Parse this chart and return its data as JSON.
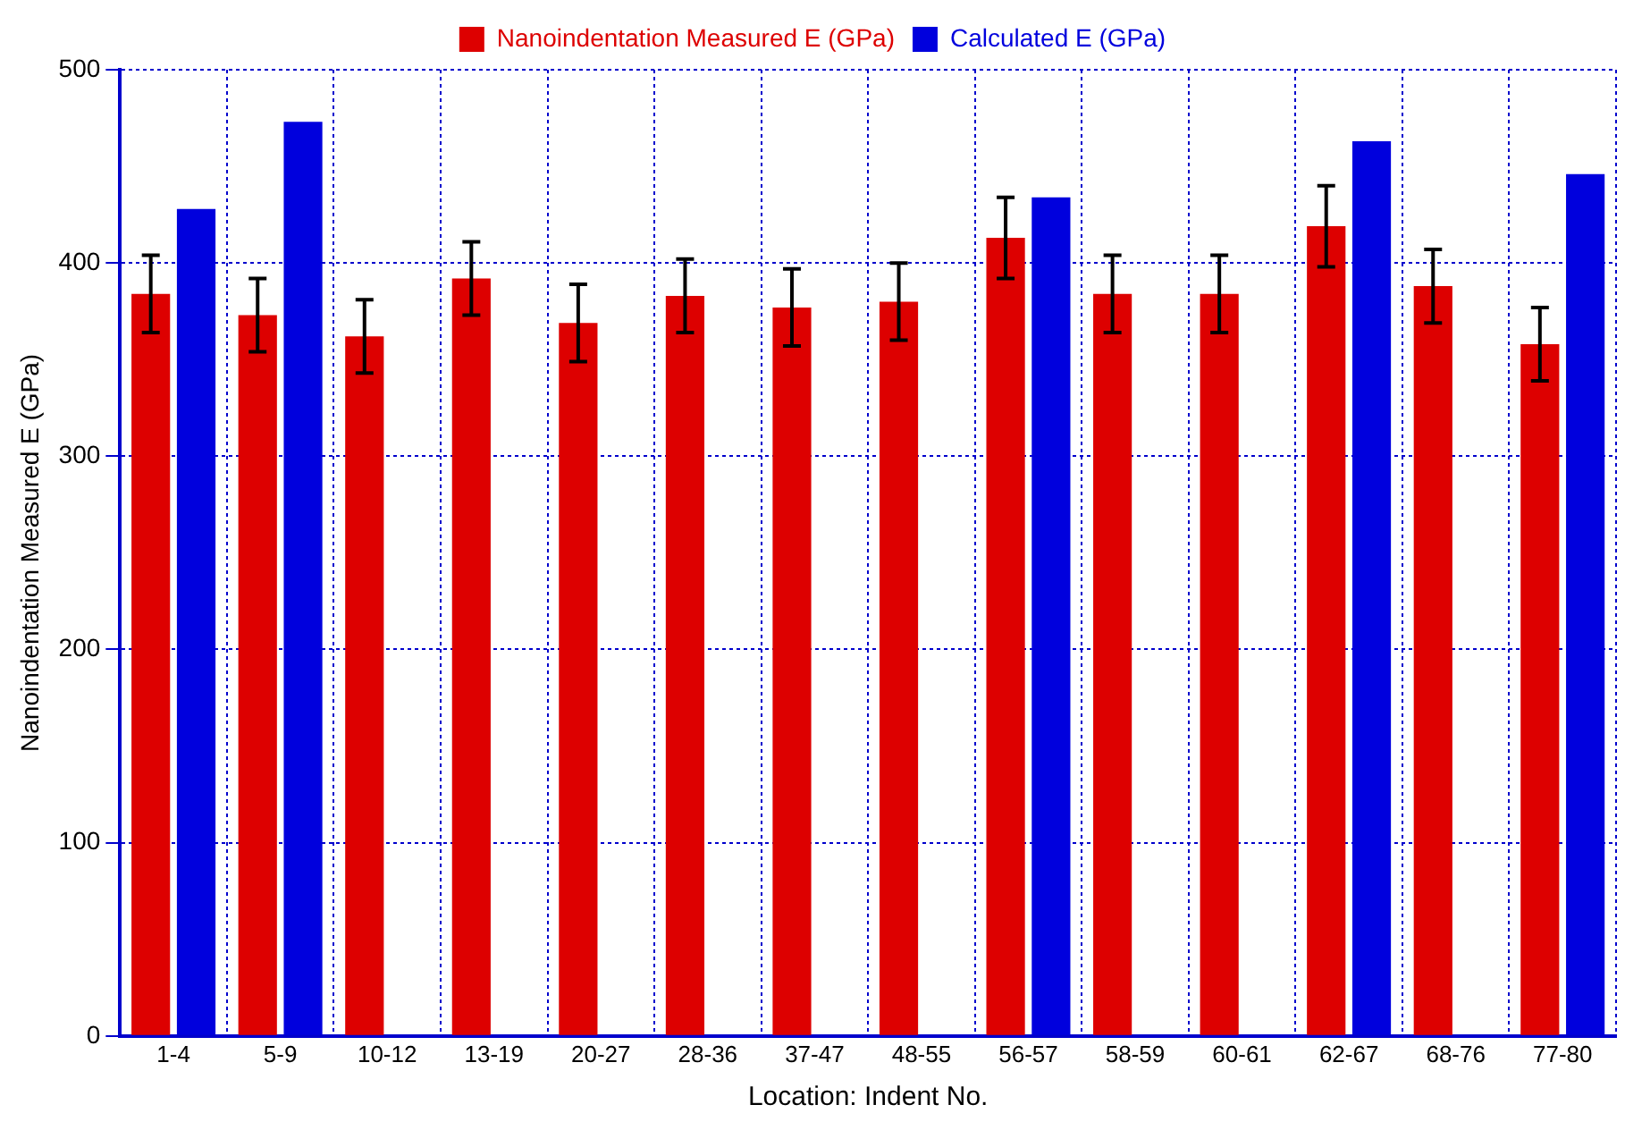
{
  "chart_data": {
    "type": "bar",
    "xlabel": "Location: Indent No.",
    "ylabel": "Nanoindentation Measured E (GPa)",
    "categories": [
      "1-4",
      "5-9",
      "10-12",
      "13-19",
      "20-27",
      "28-36",
      "37-47",
      "48-55",
      "56-57",
      "58-59",
      "60-61",
      "62-67",
      "68-76",
      "77-80"
    ],
    "series": [
      {
        "name": "Nanoindentation Measured E (GPa)",
        "color": "#dd0000",
        "values": [
          384,
          373,
          362,
          392,
          369,
          383,
          377,
          380,
          413,
          384,
          384,
          419,
          388,
          358
        ],
        "errors": [
          20,
          19,
          19,
          19,
          20,
          19,
          20,
          20,
          21,
          20,
          20,
          21,
          19,
          19
        ]
      },
      {
        "name": "Calculated E (GPa)",
        "color": "#0000dd",
        "values": [
          428,
          473,
          null,
          null,
          null,
          null,
          null,
          null,
          434,
          null,
          null,
          463,
          null,
          446
        ]
      }
    ],
    "ylim": [
      0,
      500
    ],
    "yticks": [
      0,
      100,
      200,
      300,
      400,
      500
    ],
    "grid": true,
    "legend": "top"
  }
}
